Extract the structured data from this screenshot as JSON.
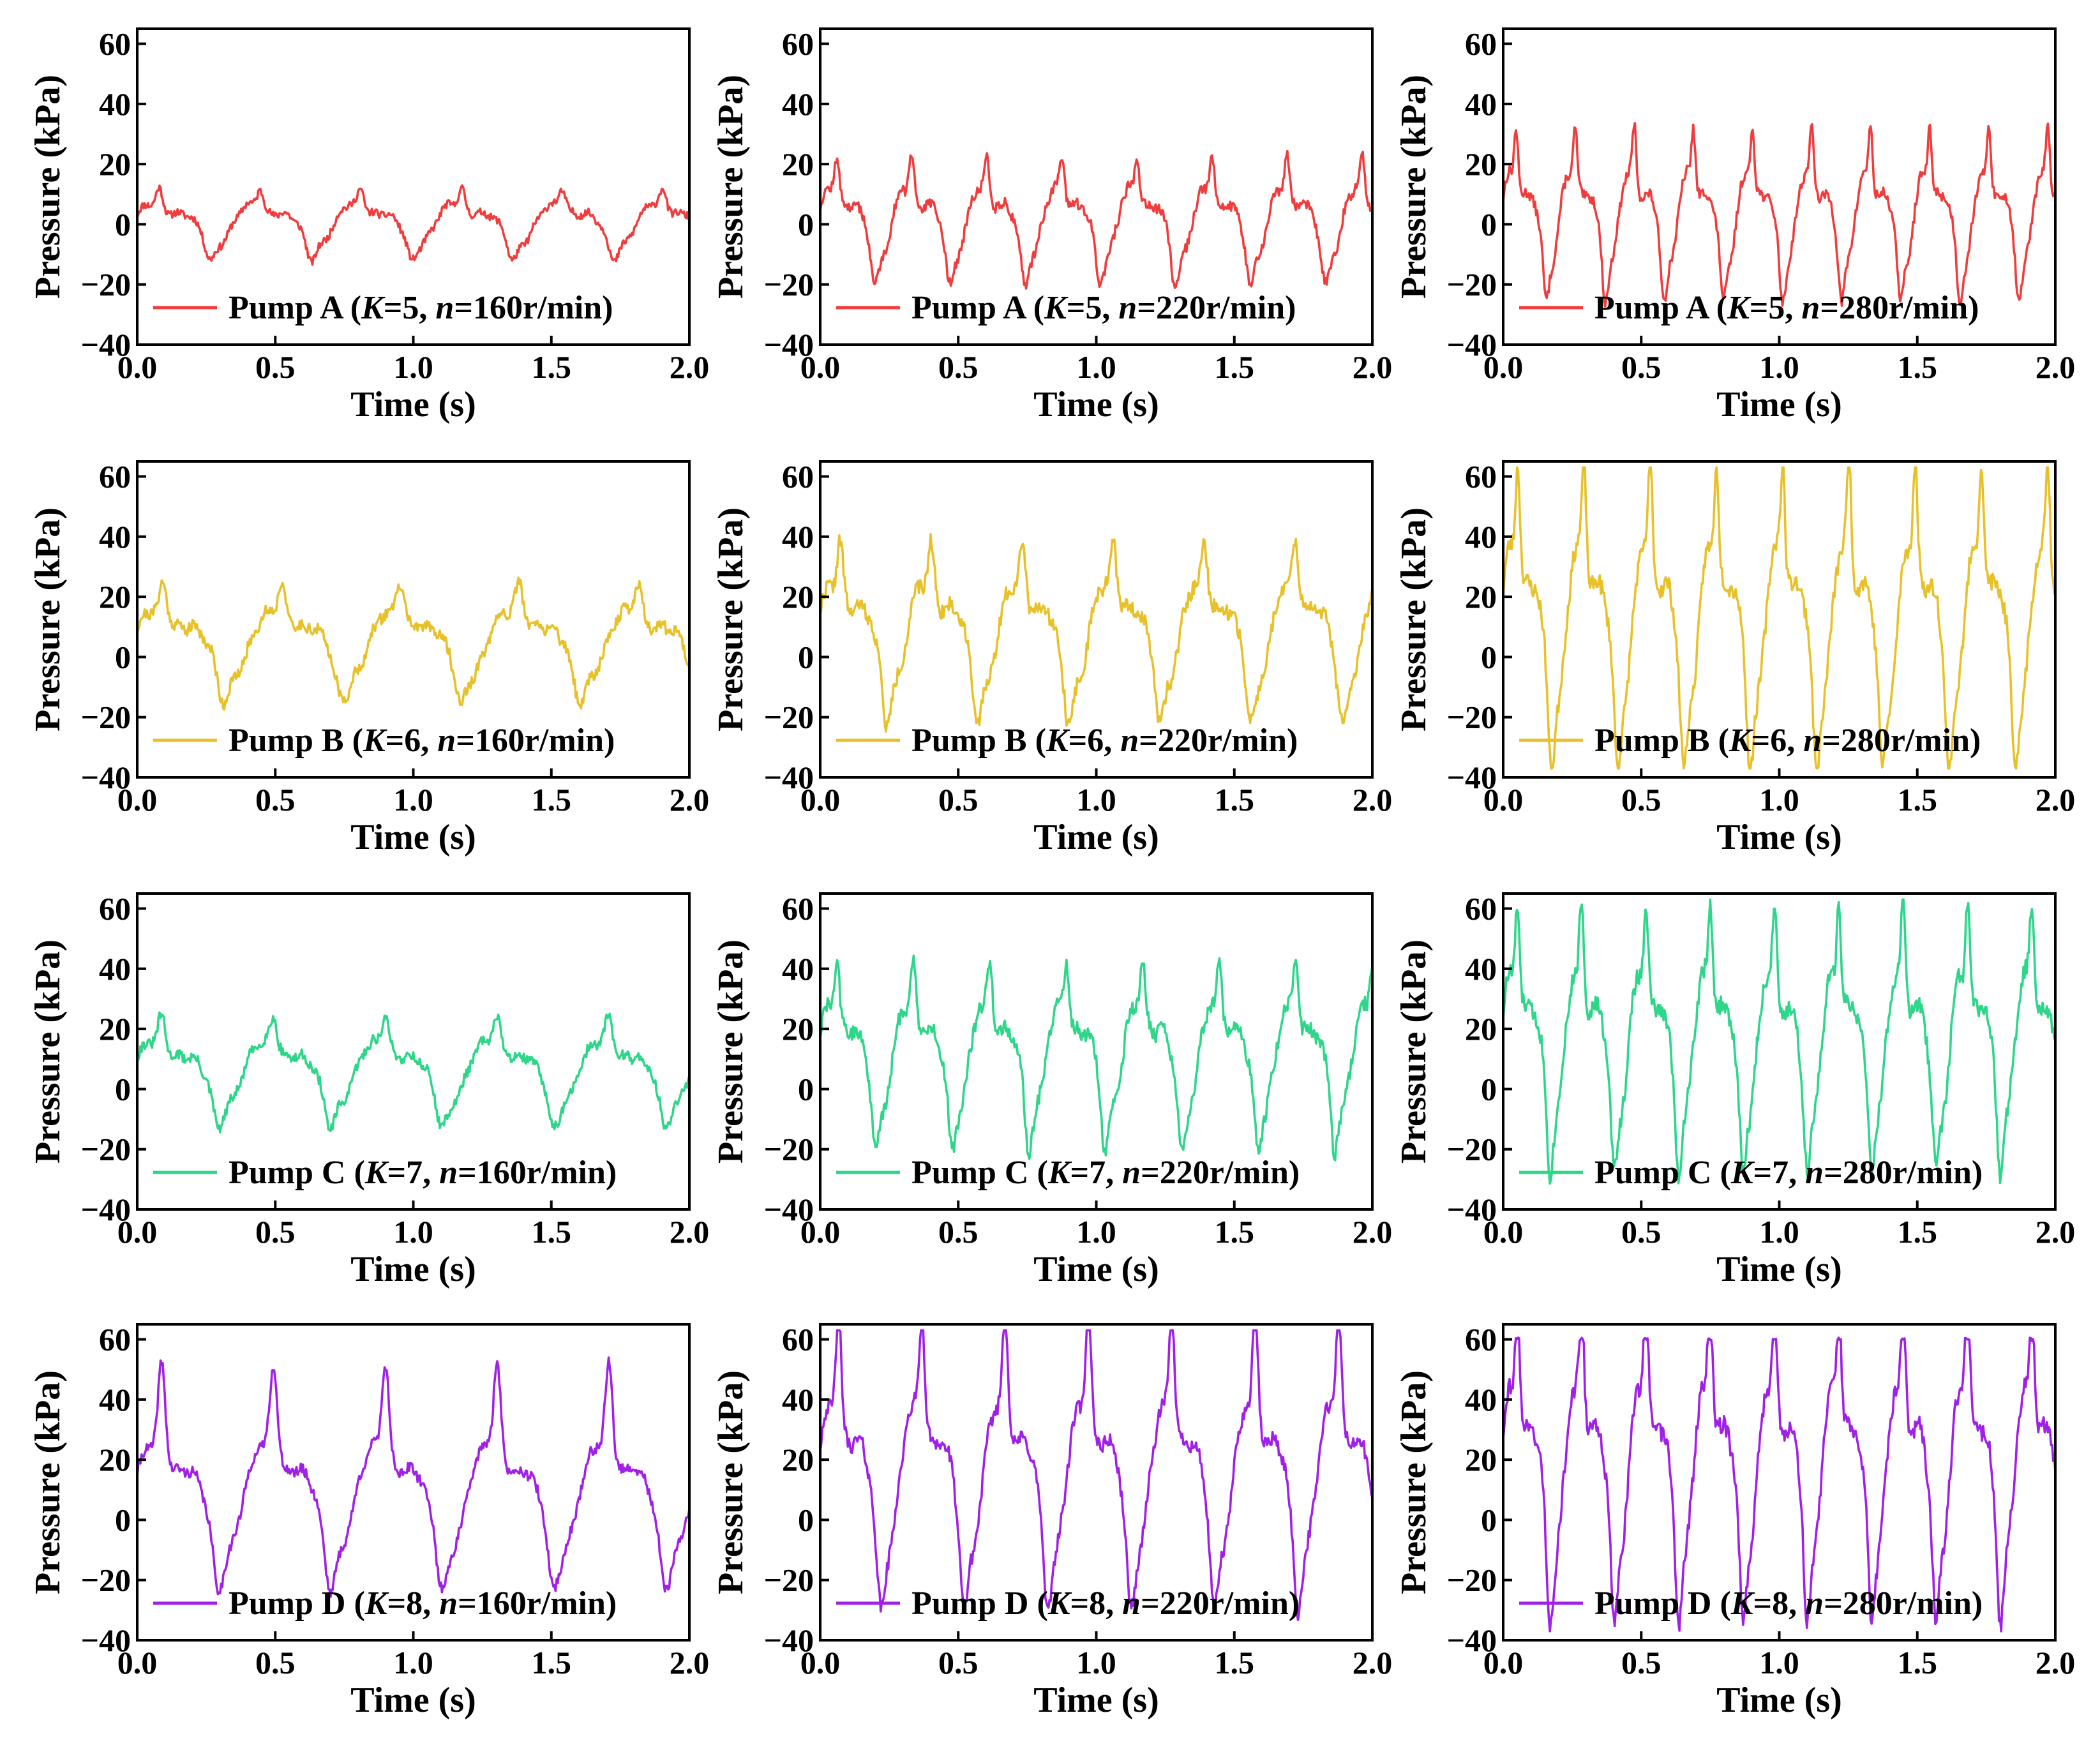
{
  "chart_data": [
    {
      "type": "line",
      "id": "A160",
      "color": "#f03c3c",
      "legend": {
        "pump": "Pump A",
        "k_var": "K",
        "k_val": "=5, ",
        "n_var": "n",
        "n_val": "=160r/min"
      },
      "xlabel": "Time (s)",
      "ylabel": "Pressure (kPa)",
      "xlim": [
        0,
        2
      ],
      "ylim": [
        -40,
        65
      ],
      "xticks": [
        "0.0",
        "0.5",
        "1.0",
        "1.5",
        "2.0"
      ],
      "yticks": [
        "−40",
        "−20",
        "0",
        "20",
        "40",
        "60"
      ],
      "signal": {
        "period": 0.365,
        "amplitude": 10.5,
        "offset": 1,
        "spike": 1.0,
        "jitter": 2.5,
        "seed": 11
      }
    },
    {
      "type": "line",
      "id": "A220",
      "color": "#f03c3c",
      "legend": {
        "pump": "Pump A",
        "k_var": "K",
        "k_val": "=5, ",
        "n_var": "n",
        "n_val": "=220r/min"
      },
      "xlabel": "Time (s)",
      "ylabel": "Pressure (kPa)",
      "xlim": [
        0,
        2
      ],
      "ylim": [
        -40,
        65
      ],
      "xticks": [
        "0.0",
        "0.5",
        "1.0",
        "1.5",
        "2.0"
      ],
      "yticks": [
        "−40",
        "−20",
        "0",
        "20",
        "40",
        "60"
      ],
      "signal": {
        "period": 0.272,
        "amplitude": 18,
        "offset": 2,
        "spike": 1.2,
        "jitter": 3.5,
        "seed": 12
      }
    },
    {
      "type": "line",
      "id": "A280",
      "color": "#f03c3c",
      "legend": {
        "pump": "Pump A",
        "k_var": "K",
        "k_val": "=5, ",
        "n_var": "n",
        "n_val": "=280r/min"
      },
      "xlabel": "Time (s)",
      "ylabel": "Pressure (kPa)",
      "xlim": [
        0,
        2
      ],
      "ylim": [
        -40,
        65
      ],
      "xticks": [
        "0.0",
        "0.5",
        "1.0",
        "1.5",
        "2.0"
      ],
      "yticks": [
        "−40",
        "−20",
        "0",
        "20",
        "40",
        "60"
      ],
      "signal": {
        "period": 0.214,
        "amplitude": 24,
        "offset": 4,
        "spike": 1.3,
        "jitter": 3.5,
        "seed": 13
      }
    },
    {
      "type": "line",
      "id": "B160",
      "color": "#e8c12a",
      "legend": {
        "pump": "Pump B",
        "k_var": "K",
        "k_val": "=6, ",
        "n_var": "n",
        "n_val": "=160r/min"
      },
      "xlabel": "Time (s)",
      "ylabel": "Pressure (kPa)",
      "xlim": [
        0,
        2
      ],
      "ylim": [
        -40,
        65
      ],
      "xticks": [
        "0.0",
        "0.5",
        "1.0",
        "1.5",
        "2.0"
      ],
      "yticks": [
        "−40",
        "−20",
        "0",
        "20",
        "40",
        "60"
      ],
      "signal": {
        "period": 0.43,
        "amplitude": 17,
        "offset": 6,
        "spike": 1.1,
        "jitter": 4,
        "seed": 21
      }
    },
    {
      "type": "line",
      "id": "B220",
      "color": "#e8c12a",
      "legend": {
        "pump": "Pump B",
        "k_var": "K",
        "k_val": "=6, ",
        "n_var": "n",
        "n_val": "=220r/min"
      },
      "xlabel": "Time (s)",
      "ylabel": "Pressure (kPa)",
      "xlim": [
        0,
        2
      ],
      "ylim": [
        -40,
        65
      ],
      "xticks": [
        "0.0",
        "0.5",
        "1.0",
        "1.5",
        "2.0"
      ],
      "yticks": [
        "−40",
        "−20",
        "0",
        "20",
        "40",
        "60"
      ],
      "signal": {
        "period": 0.33,
        "amplitude": 26,
        "offset": 10,
        "spike": 1.1,
        "jitter": 5,
        "seed": 22
      }
    },
    {
      "type": "line",
      "id": "B280",
      "color": "#e8c12a",
      "legend": {
        "pump": "Pump B",
        "k_var": "K",
        "k_val": "=6, ",
        "n_var": "n",
        "n_val": "=280r/min"
      },
      "xlabel": "Time (s)",
      "ylabel": "Pressure (kPa)",
      "xlim": [
        0,
        2
      ],
      "ylim": [
        -40,
        65
      ],
      "xticks": [
        "0.0",
        "0.5",
        "1.0",
        "1.5",
        "2.0"
      ],
      "yticks": [
        "−40",
        "−20",
        "0",
        "20",
        "40",
        "60"
      ],
      "signal": {
        "period": 0.24,
        "amplitude": 42,
        "offset": 14,
        "spike": 1.35,
        "jitter": 6,
        "seed": 23
      }
    },
    {
      "type": "line",
      "id": "C160",
      "color": "#2ed68a",
      "legend": {
        "pump": "Pump C",
        "k_var": "K",
        "k_val": "=7, ",
        "n_var": "n",
        "n_val": "=160r/min"
      },
      "xlabel": "Time (s)",
      "ylabel": "Pressure (kPa)",
      "xlim": [
        0,
        2
      ],
      "ylim": [
        -40,
        65
      ],
      "xticks": [
        "0.0",
        "0.5",
        "1.0",
        "1.5",
        "2.0"
      ],
      "yticks": [
        "−40",
        "−20",
        "0",
        "20",
        "40",
        "60"
      ],
      "signal": {
        "period": 0.405,
        "amplitude": 16,
        "offset": 7,
        "spike": 1.1,
        "jitter": 3.5,
        "seed": 31
      }
    },
    {
      "type": "line",
      "id": "C220",
      "color": "#2ed68a",
      "legend": {
        "pump": "Pump C",
        "k_var": "K",
        "k_val": "=7, ",
        "n_var": "n",
        "n_val": "=220r/min"
      },
      "xlabel": "Time (s)",
      "ylabel": "Pressure (kPa)",
      "xlim": [
        0,
        2
      ],
      "ylim": [
        -40,
        65
      ],
      "xticks": [
        "0.0",
        "0.5",
        "1.0",
        "1.5",
        "2.0"
      ],
      "yticks": [
        "−40",
        "−20",
        "0",
        "20",
        "40",
        "60"
      ],
      "signal": {
        "period": 0.277,
        "amplitude": 27,
        "offset": 13,
        "spike": 1.15,
        "jitter": 5,
        "seed": 32
      }
    },
    {
      "type": "line",
      "id": "C280",
      "color": "#2ed68a",
      "legend": {
        "pump": "Pump C",
        "k_var": "K",
        "k_val": "=7, ",
        "n_var": "n",
        "n_val": "=280r/min"
      },
      "xlabel": "Time (s)",
      "ylabel": "Pressure (kPa)",
      "xlim": [
        0,
        2
      ],
      "ylim": [
        -40,
        65
      ],
      "xticks": [
        "0.0",
        "0.5",
        "1.0",
        "1.5",
        "2.0"
      ],
      "yticks": [
        "−40",
        "−20",
        "0",
        "20",
        "40",
        "60"
      ],
      "signal": {
        "period": 0.233,
        "amplitude": 37,
        "offset": 18,
        "spike": 1.3,
        "jitter": 6,
        "seed": 33
      }
    },
    {
      "type": "line",
      "id": "D160",
      "color": "#a020e8",
      "legend": {
        "pump": "Pump D",
        "k_var": "K",
        "k_val": "=8, ",
        "n_var": "n",
        "n_val": "=160r/min"
      },
      "xlabel": "Time (s)",
      "ylabel": "Pressure (kPa)",
      "xlim": [
        0,
        2
      ],
      "ylim": [
        -40,
        65
      ],
      "xticks": [
        "0.0",
        "0.5",
        "1.0",
        "1.5",
        "2.0"
      ],
      "yticks": [
        "−40",
        "−20",
        "0",
        "20",
        "40",
        "60"
      ],
      "signal": {
        "period": 0.405,
        "amplitude": 27,
        "offset": 10,
        "spike": 1.9,
        "jitter": 3.5,
        "seed": 41
      }
    },
    {
      "type": "line",
      "id": "D220",
      "color": "#a020e8",
      "legend": {
        "pump": "Pump D",
        "k_var": "K",
        "k_val": "=8, ",
        "n_var": "n",
        "n_val": "=220r/min"
      },
      "xlabel": "Time (s)",
      "ylabel": "Pressure (kPa)",
      "xlim": [
        0,
        2
      ],
      "ylim": [
        -40,
        65
      ],
      "xticks": [
        "0.0",
        "0.5",
        "1.0",
        "1.5",
        "2.0"
      ],
      "yticks": [
        "−40",
        "−20",
        "0",
        "20",
        "40",
        "60"
      ],
      "signal": {
        "period": 0.302,
        "amplitude": 38,
        "offset": 17,
        "spike": 1.6,
        "jitter": 5,
        "seed": 42
      }
    },
    {
      "type": "line",
      "id": "D280",
      "color": "#a020e8",
      "legend": {
        "pump": "Pump D",
        "k_var": "K",
        "k_val": "=8, ",
        "n_var": "n",
        "n_val": "=280r/min"
      },
      "xlabel": "Time (s)",
      "ylabel": "Pressure (kPa)",
      "xlim": [
        0,
        2
      ],
      "ylim": [
        -40,
        65
      ],
      "xticks": [
        "0.0",
        "0.5",
        "1.0",
        "1.5",
        "2.0"
      ],
      "yticks": [
        "−40",
        "−20",
        "0",
        "20",
        "40",
        "60"
      ],
      "signal": {
        "period": 0.233,
        "amplitude": 44,
        "offset": 20,
        "spike": 1.5,
        "jitter": 6,
        "seed": 43,
        "clip": 60
      }
    }
  ]
}
